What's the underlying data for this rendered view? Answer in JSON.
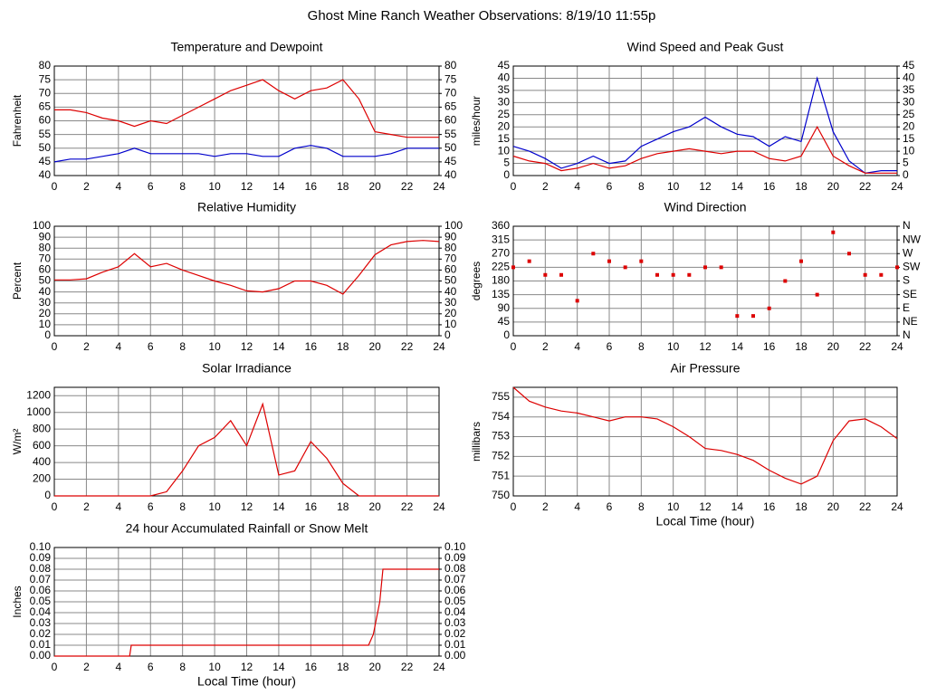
{
  "page_title": "Ghost Mine Ranch Weather Observations: 8/19/10 11:55p",
  "chart_data": [
    {
      "type": "line",
      "title": "Temperature and Dewpoint",
      "ylabel": "Fahrenheit",
      "x": [
        0,
        1,
        2,
        3,
        4,
        5,
        6,
        7,
        8,
        9,
        10,
        11,
        12,
        13,
        14,
        15,
        16,
        17,
        18,
        19,
        20,
        21,
        22,
        23,
        24
      ],
      "series": [
        {
          "color": "#dd0000",
          "values": [
            64,
            64,
            63,
            61,
            60,
            58,
            60,
            59,
            62,
            65,
            68,
            71,
            73,
            75,
            71,
            68,
            71,
            72,
            75,
            68,
            56,
            55,
            54,
            54,
            54
          ]
        },
        {
          "color": "#0000cc",
          "values": [
            45,
            46,
            46,
            47,
            48,
            50,
            48,
            48,
            48,
            48,
            47,
            48,
            48,
            47,
            47,
            50,
            51,
            50,
            47,
            47,
            47,
            48,
            50,
            50,
            50
          ]
        }
      ],
      "xlim": [
        0,
        24
      ],
      "xticks": [
        0,
        2,
        4,
        6,
        8,
        10,
        12,
        14,
        16,
        18,
        20,
        22,
        24
      ],
      "ylim": [
        40,
        80
      ],
      "yticks": [
        40,
        45,
        50,
        55,
        60,
        65,
        70,
        75,
        80
      ],
      "y2lim": [
        40,
        80
      ],
      "y2ticks": [
        40,
        45,
        50,
        55,
        60,
        65,
        70,
        75,
        80
      ],
      "grid": true
    },
    {
      "type": "line",
      "title": "Wind Speed and Peak Gust",
      "ylabel": "miles/hour",
      "x": [
        0,
        1,
        2,
        3,
        4,
        5,
        6,
        7,
        8,
        9,
        10,
        11,
        12,
        13,
        14,
        15,
        16,
        17,
        18,
        19,
        20,
        21,
        22,
        23,
        24
      ],
      "series": [
        {
          "color": "#0000cc",
          "values": [
            12,
            10,
            7,
            3,
            5,
            8,
            5,
            6,
            12,
            15,
            18,
            20,
            24,
            20,
            17,
            16,
            12,
            16,
            14,
            40,
            18,
            6,
            1,
            2,
            2
          ]
        },
        {
          "color": "#dd0000",
          "values": [
            8,
            6,
            5,
            2,
            3,
            5,
            3,
            4,
            7,
            9,
            10,
            11,
            10,
            9,
            10,
            10,
            7,
            6,
            8,
            20,
            8,
            4,
            1,
            1,
            1
          ]
        }
      ],
      "xlim": [
        0,
        24
      ],
      "xticks": [
        0,
        2,
        4,
        6,
        8,
        10,
        12,
        14,
        16,
        18,
        20,
        22,
        24
      ],
      "ylim": [
        0,
        45
      ],
      "yticks": [
        0,
        5,
        10,
        15,
        20,
        25,
        30,
        35,
        40,
        45
      ],
      "y2lim": [
        0,
        45
      ],
      "y2ticks": [
        0,
        5,
        10,
        15,
        20,
        25,
        30,
        35,
        40,
        45
      ],
      "grid": true
    },
    {
      "type": "line",
      "title": "Relative Humidity",
      "ylabel": "Percent",
      "x": [
        0,
        1,
        2,
        3,
        4,
        5,
        6,
        7,
        8,
        9,
        10,
        11,
        12,
        13,
        14,
        15,
        16,
        17,
        18,
        19,
        20,
        21,
        22,
        23,
        24
      ],
      "series": [
        {
          "color": "#dd0000",
          "values": [
            51,
            51,
            52,
            58,
            63,
            75,
            63,
            66,
            60,
            55,
            50,
            46,
            41,
            40,
            43,
            50,
            50,
            46,
            38,
            55,
            74,
            83,
            86,
            87,
            86
          ]
        }
      ],
      "xlim": [
        0,
        24
      ],
      "xticks": [
        0,
        2,
        4,
        6,
        8,
        10,
        12,
        14,
        16,
        18,
        20,
        22,
        24
      ],
      "ylim": [
        0,
        100
      ],
      "yticks": [
        0,
        10,
        20,
        30,
        40,
        50,
        60,
        70,
        80,
        90,
        100
      ],
      "y2lim": [
        0,
        100
      ],
      "y2ticks": [
        0,
        10,
        20,
        30,
        40,
        50,
        60,
        70,
        80,
        90,
        100
      ],
      "grid": true
    },
    {
      "type": "scatter",
      "title": "Wind Direction",
      "ylabel": "degrees",
      "x": [
        0,
        1,
        2,
        3,
        4,
        5,
        6,
        7,
        8,
        9,
        10,
        11,
        12,
        13,
        14,
        15,
        16,
        17,
        18,
        19,
        20,
        21,
        22,
        23,
        24
      ],
      "series": [
        {
          "color": "#dd0000",
          "values": [
            225,
            245,
            200,
            200,
            115,
            270,
            245,
            225,
            245,
            200,
            200,
            200,
            225,
            225,
            65,
            65,
            90,
            180,
            245,
            135,
            340,
            270,
            200,
            200,
            225
          ]
        }
      ],
      "xlim": [
        0,
        24
      ],
      "xticks": [
        0,
        2,
        4,
        6,
        8,
        10,
        12,
        14,
        16,
        18,
        20,
        22,
        24
      ],
      "ylim": [
        0,
        360
      ],
      "yticks": [
        0,
        45,
        90,
        135,
        180,
        225,
        270,
        315,
        360
      ],
      "y2lim": [
        0,
        360
      ],
      "y2ticks": [
        {
          "value": 0,
          "label": "N"
        },
        {
          "value": 45,
          "label": "NE"
        },
        {
          "value": 90,
          "label": "E"
        },
        {
          "value": 135,
          "label": "SE"
        },
        {
          "value": 180,
          "label": "S"
        },
        {
          "value": 225,
          "label": "SW"
        },
        {
          "value": 270,
          "label": "W"
        },
        {
          "value": 315,
          "label": "NW"
        },
        {
          "value": 360,
          "label": "N"
        }
      ],
      "grid": true
    },
    {
      "type": "line",
      "title": "Solar Irradiance",
      "ylabel": "W/m²",
      "x": [
        0,
        1,
        2,
        3,
        4,
        5,
        6,
        7,
        8,
        9,
        10,
        11,
        12,
        13,
        14,
        15,
        16,
        17,
        18,
        19,
        20,
        21,
        22,
        23,
        24
      ],
      "series": [
        {
          "color": "#dd0000",
          "values": [
            0,
            0,
            0,
            0,
            0,
            0,
            0,
            50,
            300,
            600,
            700,
            900,
            600,
            1100,
            250,
            300,
            650,
            450,
            150,
            0,
            0,
            0,
            0,
            0,
            0
          ]
        }
      ],
      "xlim": [
        0,
        24
      ],
      "xticks": [
        0,
        2,
        4,
        6,
        8,
        10,
        12,
        14,
        16,
        18,
        20,
        22,
        24
      ],
      "ylim": [
        0,
        1300
      ],
      "yticks": [
        0,
        200,
        400,
        600,
        800,
        1000,
        1200
      ],
      "grid": true
    },
    {
      "type": "line",
      "title": "Air Pressure",
      "ylabel": "millibars",
      "xlabel": "Local Time (hour)",
      "x": [
        0,
        1,
        2,
        3,
        4,
        5,
        6,
        7,
        8,
        9,
        10,
        11,
        12,
        13,
        14,
        15,
        16,
        17,
        18,
        19,
        20,
        21,
        22,
        23,
        24
      ],
      "series": [
        {
          "color": "#dd0000",
          "values": [
            755.5,
            754.8,
            754.5,
            754.3,
            754.2,
            754,
            753.8,
            754,
            754,
            753.9,
            753.5,
            753,
            752.4,
            752.3,
            752.1,
            751.8,
            751.3,
            750.9,
            750.6,
            751,
            752.8,
            753.8,
            753.9,
            753.5,
            752.9
          ]
        }
      ],
      "xlim": [
        0,
        24
      ],
      "xticks": [
        0,
        2,
        4,
        6,
        8,
        10,
        12,
        14,
        16,
        18,
        20,
        22,
        24
      ],
      "ylim": [
        750,
        755.5
      ],
      "yticks": [
        750,
        751,
        752,
        753,
        754,
        755
      ],
      "grid": true
    },
    {
      "type": "line",
      "title": "24 hour Accumulated Rainfall or Snow Melt",
      "ylabel": "Inches",
      "xlabel": "Local Time (hour)",
      "x": [
        0,
        4.7,
        4.8,
        19.6,
        19.9,
        20.3,
        20.5,
        24
      ],
      "series": [
        {
          "color": "#dd0000",
          "values": [
            0,
            0,
            0.01,
            0.01,
            0.02,
            0.05,
            0.08,
            0.08
          ]
        }
      ],
      "xlim": [
        0,
        24
      ],
      "xticks": [
        0,
        2,
        4,
        6,
        8,
        10,
        12,
        14,
        16,
        18,
        20,
        22,
        24
      ],
      "ylim": [
        0,
        0.1
      ],
      "yticks": [
        {
          "value": 0,
          "label": "0.00"
        },
        0.01,
        0.02,
        0.03,
        0.04,
        0.05,
        0.06,
        0.07,
        0.08,
        0.09,
        {
          "value": 0.1,
          "label": "0.10"
        }
      ],
      "y2lim": [
        0,
        0.1
      ],
      "y2ticks": [
        {
          "value": 0,
          "label": "0.00"
        },
        0.01,
        0.02,
        0.03,
        0.04,
        0.05,
        0.06,
        0.07,
        0.08,
        0.09,
        {
          "value": 0.1,
          "label": "0.10"
        }
      ],
      "grid": true
    }
  ]
}
